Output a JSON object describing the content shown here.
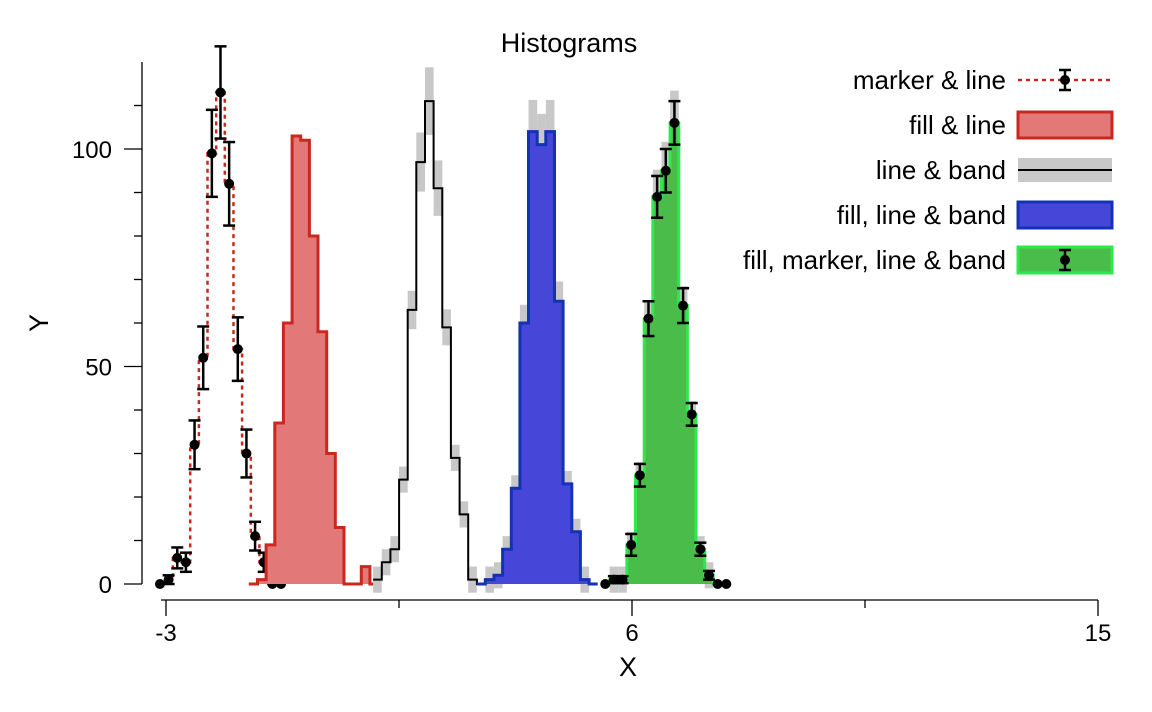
{
  "chart_data": {
    "type": "histogram",
    "title": "Histograms",
    "xlabel": "X",
    "ylabel": "Y",
    "xlim": [
      -3.0,
      15.0
    ],
    "ylim": [
      0,
      120
    ],
    "x_ticks": [
      -3,
      6,
      15
    ],
    "x_tick_labels": [
      "-3",
      "6",
      "15"
    ],
    "x_minor_ticks": [
      1.5,
      10.5
    ],
    "y_ticks": [
      0,
      50,
      100
    ],
    "y_tick_labels": [
      "0",
      "50",
      "100"
    ],
    "bin_width": 0.167,
    "legend": {
      "position": "top-right"
    },
    "series": [
      {
        "name": "marker & line",
        "style": "marker-line",
        "color": "#c8281e",
        "x0": -3.2,
        "values": [
          0,
          1,
          6,
          5,
          32,
          52,
          99,
          113,
          92,
          54,
          30,
          11,
          5,
          0,
          0
        ],
        "errors": [
          0.6,
          1,
          2.4,
          2.2,
          5.6,
          7.2,
          10,
          10.6,
          9.6,
          7.3,
          5.5,
          3.3,
          2.2,
          0,
          0
        ]
      },
      {
        "name": "fill & line",
        "style": "fill-line",
        "color": "#c8281e",
        "fill": "#e27878",
        "x0": -1.4,
        "values": [
          0,
          1,
          9,
          37,
          60,
          103,
          102,
          80,
          58,
          30,
          13,
          0,
          0,
          4,
          0
        ]
      },
      {
        "name": "line & band",
        "style": "line-band",
        "color": "#000000",
        "band": "#c8c8c8",
        "x0": 1.0,
        "values": [
          1,
          5,
          8,
          24,
          63,
          97,
          111,
          91,
          59,
          29,
          16,
          1,
          0,
          0
        ]
      },
      {
        "name": "fill, line & band",
        "style": "fill-line-band",
        "color": "#1432b4",
        "fill": "#4646d8",
        "band": "#c8c8c8",
        "x0": 3.0,
        "values": [
          0,
          1,
          2,
          8,
          22,
          60,
          104,
          101,
          104,
          65,
          23,
          12,
          1,
          0
        ]
      },
      {
        "name": "fill, marker, line & band",
        "style": "fill-marker-line-band",
        "color": "#2fe84e",
        "fill": "#49bc49",
        "band": "#c8c8c8",
        "x0": 5.4,
        "values": [
          0,
          1,
          1,
          9,
          25,
          61,
          89,
          95,
          106,
          64,
          39,
          8,
          2,
          0,
          0
        ],
        "errors": [
          0,
          0.8,
          0.8,
          2.5,
          2.6,
          4,
          4.8,
          5,
          5,
          4,
          2.6,
          1.5,
          1,
          0,
          0
        ]
      }
    ]
  }
}
